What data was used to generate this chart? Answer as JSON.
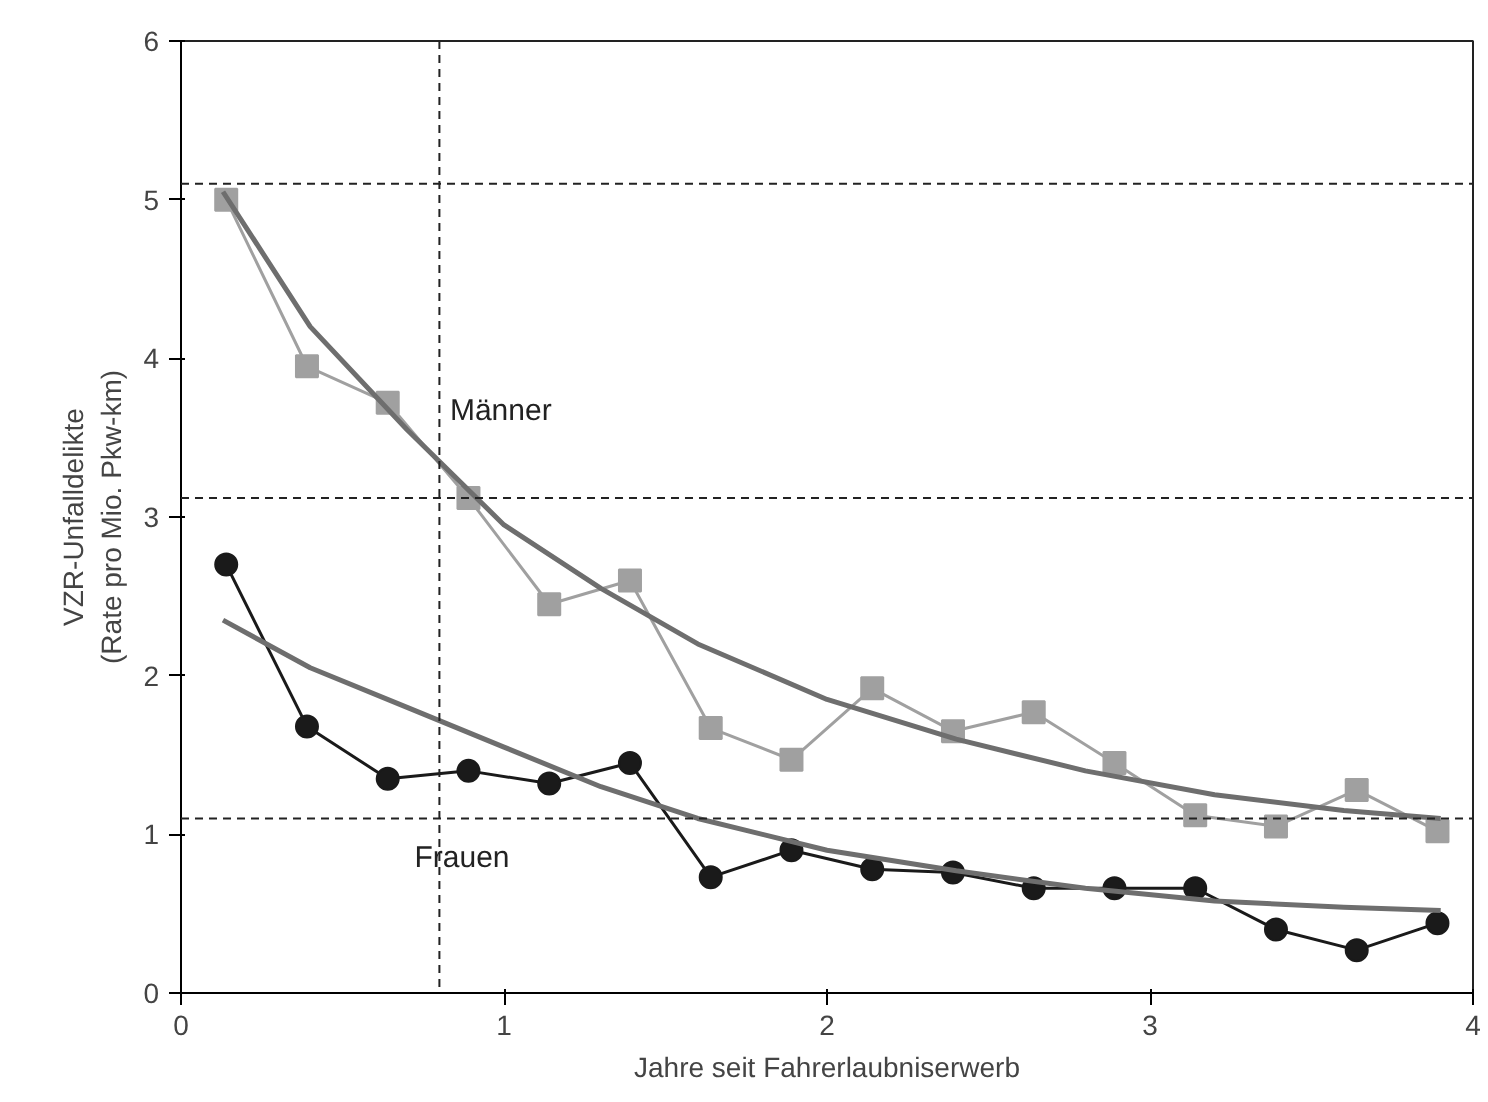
{
  "chart_data": {
    "type": "line",
    "xlabel": "Jahre seit Fahrerlaubniserwerb",
    "ylabel": "VZR-Unfalldelikte\n(Rate pro Mio. Pkw-km)",
    "xlim": [
      0,
      4
    ],
    "ylim": [
      0,
      6
    ],
    "xticks": [
      0,
      1,
      2,
      3,
      4
    ],
    "yticks": [
      0,
      1,
      2,
      3,
      4,
      5,
      6
    ],
    "grid": false,
    "series": [
      {
        "name": "Männer",
        "color": "#a0a0a0",
        "marker": "square",
        "x": [
          0.14,
          0.39,
          0.64,
          0.89,
          1.14,
          1.39,
          1.64,
          1.89,
          2.14,
          2.39,
          2.64,
          2.89,
          3.14,
          3.39,
          3.64,
          3.89
        ],
        "values": [
          5.0,
          3.95,
          3.72,
          3.12,
          2.45,
          2.6,
          1.67,
          1.47,
          1.92,
          1.65,
          1.77,
          1.45,
          1.12,
          1.05,
          1.28,
          1.02
        ]
      },
      {
        "name": "Frauen",
        "color": "#1a1a1a",
        "marker": "circle",
        "x": [
          0.14,
          0.39,
          0.64,
          0.89,
          1.14,
          1.39,
          1.64,
          1.89,
          2.14,
          2.39,
          2.64,
          2.89,
          3.14,
          3.39,
          3.64,
          3.89
        ],
        "values": [
          2.7,
          1.68,
          1.35,
          1.4,
          1.32,
          1.45,
          0.73,
          0.9,
          0.78,
          0.76,
          0.66,
          0.66,
          0.66,
          0.4,
          0.27,
          0.44
        ]
      },
      {
        "color": "#6e6e6e",
        "marker": "none",
        "x": [
          0.13,
          0.4,
          0.7,
          1.0,
          1.3,
          1.6,
          2.0,
          2.4,
          2.8,
          3.2,
          3.6,
          3.9
        ],
        "values": [
          5.05,
          4.2,
          3.55,
          2.95,
          2.55,
          2.2,
          1.85,
          1.6,
          1.4,
          1.25,
          1.15,
          1.1
        ]
      },
      {
        "color": "#6e6e6e",
        "marker": "none",
        "x": [
          0.13,
          0.4,
          0.7,
          1.0,
          1.3,
          1.6,
          2.0,
          2.4,
          2.8,
          3.2,
          3.6,
          3.9
        ],
        "values": [
          2.35,
          2.05,
          1.8,
          1.55,
          1.3,
          1.1,
          0.9,
          0.77,
          0.66,
          0.58,
          0.54,
          0.52
        ]
      }
    ],
    "ref_lines": [
      {
        "axis": "y",
        "value": 5.1,
        "line_style": "dashed"
      },
      {
        "axis": "y",
        "value": 3.12,
        "line_style": "dashed"
      },
      {
        "axis": "y",
        "value": 1.1,
        "line_style": "dashed"
      },
      {
        "axis": "x",
        "value": 0.8,
        "line_style": "dashed"
      }
    ]
  }
}
